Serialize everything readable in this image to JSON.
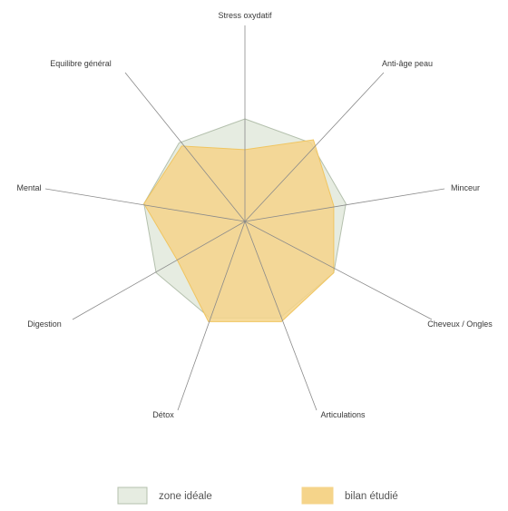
{
  "chart_data": {
    "type": "radar",
    "title": "",
    "axes": [
      "Stress oxydatif",
      "Anti-âge peau",
      "Minceur",
      "Cheveux / Ongles",
      "Articulations",
      "Détox",
      "Digestion",
      "Mental",
      "Equilibre général"
    ],
    "scale_max": 10,
    "grid": false,
    "legend_position": "bottom",
    "series": [
      {
        "name": "zone idéale",
        "values": [
          5,
          5,
          5,
          5,
          5,
          5,
          5,
          5,
          5
        ],
        "fill": "#e6ece1",
        "stroke": "#b4c0ad"
      },
      {
        "name": "bilan étudié",
        "values": [
          3.5,
          5.2,
          4.4,
          5.0,
          5.2,
          5.2,
          3.8,
          5.0,
          4.8
        ],
        "fill": "#f5d48a",
        "stroke": "#f0c560"
      }
    ]
  },
  "legend": {
    "items": [
      {
        "label": "zone idéale",
        "swatch_color": "#e6ece1",
        "swatch_border": "#b4c0ad"
      },
      {
        "label": "bilan étudié",
        "swatch_color": "#f5d48a",
        "swatch_border": "#f5d48a"
      }
    ]
  }
}
